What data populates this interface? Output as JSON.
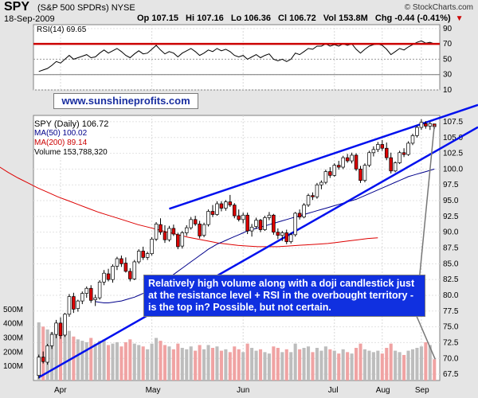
{
  "header": {
    "symbol": "SPY",
    "name": "(S&P 500 SPDRs)",
    "exchange": "NYSE",
    "date": "18-Sep-2009",
    "source": "© StockCharts.com",
    "open": "Op 107.15",
    "high": "Hi 107.16",
    "low": "Lo 106.36",
    "close": "Cl 106.72",
    "volume": "Vol 153.8M",
    "change": "Chg -0.44 (-0.41%)"
  },
  "rsi_label": "RSI(14) 69.65",
  "website": "www.sunshineprofits.com",
  "legend": {
    "main": "SPY (Daily) 106.72",
    "ma50": "MA(50) 100.02",
    "ma200": "MA(200) 89.14",
    "volume": "Volume 153,788,320"
  },
  "annotation": "Relatively high volume along with a doji candlestick just at the resistance level + RSI in the overbought territory - is the top in? Possible, but not certain.",
  "colors": {
    "up": "#ffffff",
    "down": "#dd0000",
    "trendline": "#0010ee",
    "ma50": "#00008b",
    "ma200": "#dd0000",
    "rsi_level": "#cc0000"
  },
  "chart_data": {
    "type": "candlestick",
    "x_labels": [
      "Apr",
      "May",
      "Jun",
      "Jul",
      "Aug",
      "Sep"
    ],
    "price_axis": {
      "ticks": [
        67.5,
        70.0,
        72.5,
        75.0,
        77.5,
        80.0,
        82.5,
        85.0,
        87.5,
        90.0,
        92.5,
        95.0,
        97.5,
        100.0,
        102.5,
        105.0,
        107.5
      ],
      "range": [
        66.5,
        108.5
      ]
    },
    "rsi_axis": {
      "ticks": [
        10,
        30,
        50,
        70,
        90
      ],
      "range": [
        10,
        95
      ],
      "levels": [
        30,
        70
      ]
    },
    "volume_axis": {
      "ticks": [
        "100M",
        "200M",
        "300M",
        "400M",
        "500M"
      ],
      "range": [
        0,
        550
      ]
    },
    "candles": [
      [
        67.3,
        70.6,
        66.8,
        70.2,
        410
      ],
      [
        70.2,
        71.1,
        69.2,
        69.5,
        380
      ],
      [
        69.4,
        72.3,
        69.0,
        72.0,
        360
      ],
      [
        72.0,
        74.2,
        71.5,
        73.8,
        340
      ],
      [
        73.8,
        76.1,
        73.2,
        75.6,
        330
      ],
      [
        75.6,
        76.5,
        73.1,
        73.6,
        320
      ],
      [
        73.7,
        77.2,
        73.4,
        77.0,
        330
      ],
      [
        77.0,
        80.2,
        76.6,
        79.8,
        350
      ],
      [
        79.8,
        80.4,
        77.2,
        77.8,
        310
      ],
      [
        77.9,
        79.3,
        77.4,
        79.1,
        290
      ],
      [
        79.1,
        80.6,
        78.6,
        80.3,
        280
      ],
      [
        80.3,
        81.4,
        79.6,
        81.1,
        270
      ],
      [
        81.1,
        81.6,
        78.8,
        79.2,
        300
      ],
      [
        79.3,
        80.1,
        78.3,
        79.6,
        260
      ],
      [
        79.6,
        82.4,
        79.3,
        82.1,
        280
      ],
      [
        82.1,
        84.0,
        81.6,
        83.5,
        290
      ],
      [
        83.4,
        84.2,
        82.2,
        82.5,
        250
      ],
      [
        82.5,
        84.9,
        82.0,
        84.6,
        260
      ],
      [
        84.6,
        86.1,
        84.0,
        85.8,
        270
      ],
      [
        85.8,
        86.3,
        84.5,
        85.0,
        240
      ],
      [
        85.1,
        86.0,
        83.6,
        83.8,
        270
      ],
      [
        83.8,
        84.3,
        82.2,
        82.6,
        290
      ],
      [
        82.6,
        85.6,
        82.4,
        85.3,
        260
      ],
      [
        85.3,
        87.3,
        85.0,
        87.0,
        250
      ],
      [
        87.0,
        87.7,
        85.6,
        86.0,
        240
      ],
      [
        86.0,
        86.9,
        85.6,
        86.6,
        220
      ],
      [
        86.6,
        89.2,
        86.3,
        88.9,
        260
      ],
      [
        88.9,
        91.6,
        88.6,
        91.3,
        300
      ],
      [
        91.2,
        92.2,
        89.6,
        90.0,
        280
      ],
      [
        90.0,
        91.1,
        88.3,
        88.8,
        250
      ],
      [
        88.8,
        91.0,
        88.5,
        90.6,
        240
      ],
      [
        90.6,
        91.2,
        89.4,
        89.7,
        220
      ],
      [
        89.6,
        89.9,
        87.3,
        87.7,
        260
      ],
      [
        87.8,
        90.2,
        87.4,
        89.9,
        230
      ],
      [
        89.9,
        91.1,
        89.4,
        90.7,
        220
      ],
      [
        90.7,
        92.4,
        90.4,
        92.0,
        240
      ],
      [
        92.0,
        92.6,
        91.0,
        91.3,
        210
      ],
      [
        91.3,
        91.8,
        89.0,
        89.4,
        250
      ],
      [
        89.5,
        91.5,
        89.2,
        91.2,
        220
      ],
      [
        91.2,
        93.6,
        90.9,
        93.3,
        250
      ],
      [
        93.3,
        94.3,
        92.4,
        92.8,
        230
      ],
      [
        92.8,
        94.9,
        92.6,
        94.5,
        240
      ],
      [
        94.5,
        94.9,
        93.3,
        93.8,
        210
      ],
      [
        93.8,
        95.1,
        93.4,
        94.8,
        220
      ],
      [
        94.8,
        95.9,
        94.0,
        94.3,
        200
      ],
      [
        94.3,
        94.6,
        92.2,
        92.6,
        240
      ],
      [
        92.6,
        93.6,
        91.7,
        92.0,
        220
      ],
      [
        92.0,
        93.1,
        91.4,
        92.7,
        200
      ],
      [
        92.7,
        93.1,
        89.7,
        90.2,
        260
      ],
      [
        90.2,
        91.3,
        89.3,
        90.8,
        230
      ],
      [
        90.9,
        92.3,
        90.5,
        91.9,
        210
      ],
      [
        91.9,
        92.1,
        90.0,
        90.4,
        220
      ],
      [
        90.4,
        92.6,
        90.2,
        92.3,
        200
      ],
      [
        92.3,
        93.2,
        91.9,
        92.7,
        190
      ],
      [
        92.7,
        92.9,
        89.6,
        90.0,
        240
      ],
      [
        90.0,
        90.6,
        88.9,
        89.5,
        230
      ],
      [
        89.5,
        90.2,
        88.6,
        89.9,
        200
      ],
      [
        89.9,
        90.4,
        88.1,
        88.5,
        220
      ],
      [
        88.5,
        89.9,
        88.2,
        89.6,
        200
      ],
      [
        89.6,
        93.2,
        89.3,
        93.0,
        260
      ],
      [
        93.0,
        93.6,
        92.0,
        92.4,
        220
      ],
      [
        92.4,
        94.6,
        92.2,
        94.3,
        230
      ],
      [
        94.3,
        96.1,
        94.0,
        95.8,
        240
      ],
      [
        95.8,
        96.3,
        95.1,
        95.6,
        200
      ],
      [
        95.6,
        97.8,
        95.3,
        97.5,
        230
      ],
      [
        97.5,
        98.2,
        96.8,
        97.9,
        210
      ],
      [
        97.9,
        99.9,
        97.6,
        99.6,
        240
      ],
      [
        99.6,
        100.3,
        98.6,
        99.0,
        220
      ],
      [
        99.0,
        100.9,
        98.8,
        100.6,
        210
      ],
      [
        100.6,
        101.3,
        99.9,
        100.3,
        190
      ],
      [
        100.3,
        102.1,
        100.0,
        101.8,
        220
      ],
      [
        101.8,
        102.4,
        101.0,
        101.3,
        200
      ],
      [
        101.3,
        102.6,
        100.9,
        102.2,
        190
      ],
      [
        102.2,
        102.5,
        99.7,
        100.0,
        230
      ],
      [
        100.0,
        100.5,
        97.8,
        98.2,
        260
      ],
      [
        98.2,
        100.9,
        97.9,
        100.6,
        220
      ],
      [
        100.6,
        102.9,
        100.3,
        102.6,
        210
      ],
      [
        102.6,
        103.6,
        102.0,
        103.1,
        200
      ],
      [
        103.1,
        104.3,
        102.7,
        103.9,
        210
      ],
      [
        103.9,
        104.6,
        102.9,
        103.3,
        190
      ],
      [
        103.3,
        104.2,
        101.4,
        101.8,
        230
      ],
      [
        101.8,
        102.6,
        99.3,
        99.7,
        260
      ],
      [
        99.7,
        101.2,
        99.5,
        101.0,
        210
      ],
      [
        101.0,
        102.9,
        100.8,
        102.6,
        200
      ],
      [
        102.6,
        103.3,
        101.9,
        102.3,
        180
      ],
      [
        102.3,
        104.4,
        102.1,
        104.1,
        210
      ],
      [
        104.1,
        105.6,
        103.8,
        105.3,
        220
      ],
      [
        105.3,
        106.9,
        105.0,
        106.6,
        230
      ],
      [
        106.6,
        107.9,
        106.2,
        107.4,
        240
      ],
      [
        107.2,
        107.6,
        106.4,
        106.8,
        270
      ],
      [
        106.8,
        107.5,
        106.2,
        107.2,
        250
      ],
      [
        107.15,
        107.16,
        106.36,
        106.72,
        150
      ]
    ],
    "ma50": [
      79.0,
      78.9,
      78.8,
      78.8,
      78.9,
      79.0,
      79.1,
      79.3,
      79.5,
      79.7,
      80.0,
      80.3,
      80.6,
      81.0,
      81.4,
      81.8,
      82.3,
      82.8,
      83.3,
      83.8,
      84.3,
      84.8,
      85.3,
      85.8,
      86.3,
      86.8,
      87.3,
      87.7,
      88.1,
      88.4,
      88.7,
      89.0,
      89.3,
      89.6,
      89.9,
      90.2,
      90.4,
      90.6,
      90.8,
      91.0,
      91.2,
      91.4,
      91.6,
      91.8,
      92.0,
      92.2,
      92.4,
      92.6,
      92.8,
      93.0,
      93.2,
      93.4,
      93.6,
      93.8,
      94.0,
      94.2,
      94.4,
      94.6,
      94.8,
      95.0,
      95.2,
      95.5,
      95.8,
      96.1,
      96.4,
      96.7,
      97.0,
      97.3,
      97.6,
      97.9,
      98.2,
      98.5,
      98.8,
      99.0,
      99.2,
      99.4,
      99.6,
      99.8,
      100.0
    ],
    "ma50_start_index": 13,
    "ma200": [
      102.5,
      101.5,
      100.5,
      99.5,
      98.6,
      97.8,
      97.0,
      96.3,
      95.6,
      95.0,
      94.4,
      93.8,
      93.2,
      92.7,
      92.2,
      91.7,
      91.2,
      90.8,
      90.4,
      90.0,
      89.6,
      89.2,
      88.9,
      88.6,
      88.3,
      88.1,
      87.9,
      87.8,
      87.7,
      87.7,
      87.7,
      87.8,
      87.9,
      88.0,
      88.1,
      88.2,
      88.4,
      88.6,
      88.8,
      89.0,
      89.1
    ],
    "ma200_step": 2.3,
    "trendlines": [
      {
        "name": "resistance",
        "from": [
          30,
          93.7
        ],
        "to": [
          93,
          108.3
        ]
      },
      {
        "name": "support",
        "from": [
          0,
          67.0
        ],
        "to": [
          93,
          103.5
        ]
      }
    ],
    "rsi": [
      34,
      36,
      38,
      42,
      47,
      45,
      50,
      55,
      50,
      52,
      54,
      56,
      52,
      53,
      58,
      62,
      58,
      61,
      64,
      60,
      55,
      52,
      57,
      61,
      57,
      58,
      63,
      68,
      62,
      57,
      60,
      58,
      53,
      58,
      61,
      64,
      60,
      55,
      58,
      62,
      60,
      64,
      61,
      63,
      60,
      55,
      53,
      55,
      50,
      53,
      56,
      52,
      55,
      57,
      50,
      48,
      50,
      47,
      50,
      58,
      56,
      60,
      64,
      63,
      67,
      67,
      70,
      67,
      69,
      67,
      70,
      68,
      70,
      63,
      58,
      63,
      67,
      69,
      70,
      68,
      63,
      56,
      60,
      64,
      62,
      66,
      69,
      72,
      74,
      71,
      72,
      70
    ]
  }
}
